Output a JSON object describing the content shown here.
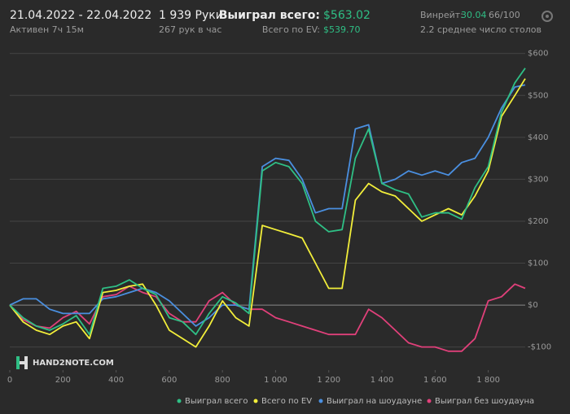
{
  "header": {
    "dates": "21.04.2022 - 22.04.2022",
    "active": "Активен 7ч 15м",
    "hands": "1 939 Руки",
    "hands_per_hour": "267 рук в час",
    "won_label": "Выиграл всего:",
    "won_value": "$563.02",
    "ev_label": "Всего по EV:",
    "ev_value": "$539.70",
    "winrate_label": "Винрейт:",
    "winrate_value": "30.04",
    "winrate_unit": "66/100",
    "tables": "2.2 среднее число столов"
  },
  "watermark": "HAND2NOTE.COM",
  "chart_data": {
    "type": "line",
    "x": [
      0,
      50,
      100,
      150,
      200,
      250,
      300,
      350,
      400,
      450,
      500,
      550,
      600,
      650,
      700,
      750,
      800,
      850,
      900,
      950,
      1000,
      1050,
      1100,
      1150,
      1200,
      1250,
      1300,
      1350,
      1400,
      1450,
      1500,
      1550,
      1600,
      1650,
      1700,
      1750,
      1800,
      1850,
      1900,
      1939
    ],
    "series": [
      {
        "name": "Выиграл всего",
        "color": "#2fbf85",
        "values": [
          0,
          -30,
          -50,
          -60,
          -45,
          -25,
          -70,
          40,
          45,
          60,
          40,
          25,
          -30,
          -40,
          -70,
          -20,
          20,
          5,
          -20,
          320,
          340,
          330,
          290,
          200,
          175,
          180,
          350,
          420,
          290,
          275,
          265,
          210,
          220,
          220,
          205,
          280,
          330,
          460,
          530,
          565
        ]
      },
      {
        "name": "Всего по EV",
        "color": "#f2ee3a",
        "values": [
          0,
          -40,
          -60,
          -70,
          -50,
          -40,
          -80,
          30,
          35,
          45,
          50,
          0,
          -60,
          -80,
          -100,
          -50,
          10,
          -30,
          -50,
          190,
          180,
          170,
          160,
          100,
          40,
          40,
          250,
          290,
          270,
          260,
          230,
          200,
          215,
          230,
          215,
          260,
          320,
          450,
          500,
          540
        ]
      },
      {
        "name": "Выиграл на шоудауне",
        "color": "#4a8fe0",
        "values": [
          0,
          15,
          15,
          -10,
          -20,
          -20,
          -20,
          15,
          20,
          30,
          40,
          30,
          10,
          -20,
          -50,
          -30,
          0,
          0,
          -10,
          330,
          350,
          345,
          300,
          220,
          230,
          230,
          420,
          430,
          290,
          300,
          320,
          310,
          320,
          310,
          340,
          350,
          400,
          470,
          520,
          525
        ]
      },
      {
        "name": "Выиграл без шоудауна",
        "color": "#e0407a",
        "values": [
          0,
          -35,
          -50,
          -55,
          -30,
          -15,
          -45,
          20,
          25,
          45,
          30,
          20,
          -20,
          -40,
          -40,
          10,
          30,
          0,
          -10,
          -10,
          -30,
          -40,
          -50,
          -60,
          -70,
          -70,
          -70,
          -10,
          -30,
          -60,
          -90,
          -100,
          -100,
          -110,
          -110,
          -80,
          10,
          20,
          50,
          40
        ]
      }
    ],
    "xlim": [
      0,
      1939
    ],
    "ylim": [
      -155,
      615
    ],
    "xticks": [
      0,
      200,
      400,
      600,
      800,
      {
        "value": 1000,
        "label": "1 000"
      },
      {
        "value": 1200,
        "label": "1 200"
      },
      {
        "value": 1400,
        "label": "1 400"
      },
      {
        "value": 1600,
        "label": "1 600"
      },
      {
        "value": 1800,
        "label": "1 800"
      }
    ],
    "yticks": [
      {
        "value": -100,
        "label": "-$100"
      },
      {
        "value": 0,
        "label": "$0"
      },
      {
        "value": 100,
        "label": "$100"
      },
      {
        "value": 200,
        "label": "$200"
      },
      {
        "value": 300,
        "label": "$300"
      },
      {
        "value": 400,
        "label": "$400"
      },
      {
        "value": 500,
        "label": "$500"
      },
      {
        "value": 600,
        "label": "$600"
      }
    ],
    "grid": true
  }
}
